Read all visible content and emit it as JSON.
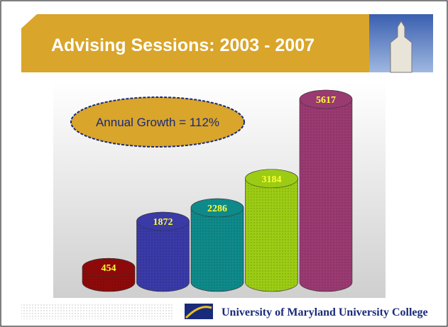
{
  "chart_data": {
    "type": "bar",
    "title": "Advising Sessions: 2003 - 2007",
    "annotation": "Annual Growth = 112%",
    "values": [
      454,
      1872,
      2286,
      3184,
      5617
    ],
    "colors": [
      "#8e0a0a",
      "#3a3aa8",
      "#0f8a8a",
      "#9ccc14",
      "#9a3a72"
    ],
    "footer": "University of Maryland University College"
  }
}
